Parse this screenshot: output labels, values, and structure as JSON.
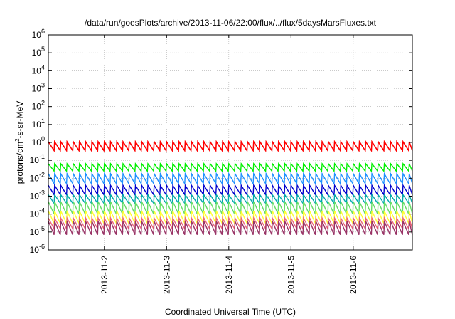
{
  "chart_data": {
    "type": "line",
    "title": "/data/run/goesPlots/archive/2013-11-06/22:00/flux/../flux/5daysMarsFluxes.txt",
    "xlabel": "Coordinated Universal Time (UTC)",
    "ylabel": {
      "base": "protons/cm",
      "sup": "2",
      "rest": "-s-sr-MeV"
    },
    "yscale": "log",
    "ylim_exp": [
      -6,
      6
    ],
    "yticks": [
      {
        "base": "10",
        "exp": "6"
      },
      {
        "base": "10",
        "exp": "5"
      },
      {
        "base": "10",
        "exp": "4"
      },
      {
        "base": "10",
        "exp": "3"
      },
      {
        "base": "10",
        "exp": "2"
      },
      {
        "base": "10",
        "exp": "1"
      },
      {
        "base": "10",
        "exp": "0"
      },
      {
        "base": "10",
        "exp": "-1"
      },
      {
        "base": "10",
        "exp": "-2"
      },
      {
        "base": "10",
        "exp": "-3"
      },
      {
        "base": "10",
        "exp": "-4"
      },
      {
        "base": "10",
        "exp": "-5"
      },
      {
        "base": "10",
        "exp": "-6"
      }
    ],
    "xlim_days": [
      1.1,
      6.95
    ],
    "xticks": [
      {
        "label": "2013-11-2",
        "day": 2
      },
      {
        "label": "2013-11-3",
        "day": 3
      },
      {
        "label": "2013-11-4",
        "day": 4
      },
      {
        "label": "2013-11-5",
        "day": 5
      },
      {
        "label": "2013-11-6",
        "day": 6
      }
    ],
    "grid": true,
    "sawtooth_period_days": 0.1,
    "series": [
      {
        "color": "#ff0000",
        "low": 0.35,
        "high": 1.1
      },
      {
        "color": "#00ee00",
        "low": 0.025,
        "high": 0.065
      },
      {
        "color": "#1e90ff",
        "low": 0.005,
        "high": 0.018
      },
      {
        "color": "#0000cc",
        "low": 0.0012,
        "high": 0.004
      },
      {
        "color": "#00aaaa",
        "low": 0.0004,
        "high": 0.0012
      },
      {
        "color": "#66dd66",
        "low": 0.0001,
        "high": 0.0005
      },
      {
        "color": "#ffff33",
        "low": 3e-05,
        "high": 0.00015
      },
      {
        "color": "#ee6677",
        "low": 1.5e-05,
        "high": 6e-05
      },
      {
        "color": "#993366",
        "low": 7e-06,
        "high": 4e-05
      }
    ]
  }
}
